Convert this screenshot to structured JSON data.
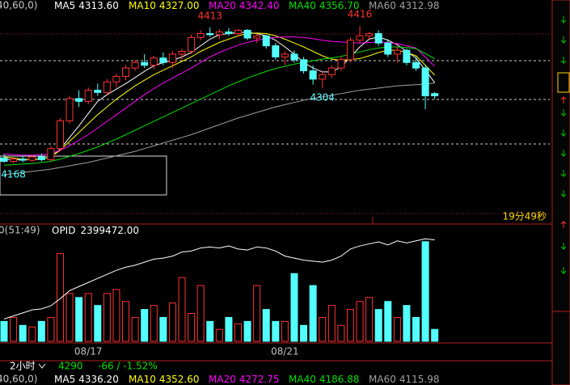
{
  "chart_data": {
    "type": "candlestick",
    "params": "40,60,0)",
    "categories": [
      null,
      null,
      null,
      null,
      null,
      null,
      null,
      null,
      null,
      "08/17",
      null,
      null,
      null,
      null,
      null,
      null,
      null,
      null,
      null,
      null,
      null,
      null,
      null,
      null,
      null,
      null,
      null,
      null,
      null,
      null,
      "08/21",
      null,
      null,
      null,
      null,
      null,
      null,
      null,
      null,
      null,
      null,
      null,
      null,
      null,
      null,
      null,
      null
    ],
    "open": [
      4178,
      4172,
      4176,
      4174,
      4180,
      4175,
      4195,
      4245,
      4285,
      4280,
      4300,
      4296,
      4315,
      4325,
      4340,
      4350,
      4345,
      4358,
      4350,
      4365,
      4370,
      4395,
      4402,
      4400,
      4405,
      4402,
      4408,
      4394,
      4398,
      4380,
      4360,
      4365,
      4355,
      4335,
      4320,
      4328,
      4340,
      4355,
      4390,
      4398,
      4402,
      4385,
      4365,
      4372,
      4350,
      4340,
      4294
    ],
    "high": [
      4185,
      4180,
      4182,
      4184,
      4186,
      4200,
      4250,
      4290,
      4300,
      4305,
      4312,
      4320,
      4330,
      4345,
      4355,
      4365,
      4362,
      4368,
      4370,
      4375,
      4400,
      4408,
      4413,
      4410,
      4412,
      4410,
      4410,
      4402,
      4400,
      4385,
      4370,
      4372,
      4360,
      4345,
      4335,
      4345,
      4360,
      4395,
      4416,
      4405,
      4408,
      4392,
      4380,
      4375,
      4360,
      4345,
      4297
    ],
    "low": [
      4170,
      4168,
      4170,
      4170,
      4172,
      4172,
      4190,
      4240,
      4270,
      4275,
      4290,
      4292,
      4305,
      4318,
      4335,
      4340,
      4338,
      4345,
      4340,
      4355,
      4365,
      4390,
      4396,
      4392,
      4398,
      4396,
      4390,
      4385,
      4375,
      4355,
      4345,
      4350,
      4330,
      4310,
      4304,
      4322,
      4335,
      4350,
      4385,
      4390,
      4380,
      4360,
      4350,
      4345,
      4335,
      4266,
      4284
    ],
    "close": [
      4172,
      4176,
      4174,
      4180,
      4175,
      4195,
      4245,
      4285,
      4280,
      4300,
      4296,
      4315,
      4325,
      4340,
      4350,
      4345,
      4358,
      4350,
      4365,
      4370,
      4395,
      4402,
      4400,
      4405,
      4402,
      4408,
      4394,
      4398,
      4380,
      4360,
      4365,
      4355,
      4335,
      4320,
      4328,
      4340,
      4355,
      4390,
      4398,
      4402,
      4385,
      4365,
      4372,
      4350,
      4340,
      4290,
      4290
    ],
    "ylim": [
      4062,
      4445
    ],
    "up_color": "#ff3232",
    "down_color": "#54ffff",
    "series": [
      {
        "name": "MA5",
        "color": "#ffffff",
        "legend": "4313.60",
        "values": [
          4176,
          4175,
          4175,
          4176,
          4176,
          4180,
          4194,
          4215,
          4236,
          4258,
          4280,
          4292,
          4302,
          4312,
          4323,
          4334,
          4344,
          4350,
          4354,
          4360,
          4368,
          4380,
          4392,
          4400,
          4402,
          4404,
          4404,
          4402,
          4398,
          4390,
          4378,
          4365,
          4350,
          4340,
          4333,
          4333,
          4342,
          4360,
          4378,
          4392,
          4396,
          4390,
          4382,
          4370,
          4358,
          4336,
          4313.6
        ]
      },
      {
        "name": "MA10",
        "color": "#ffff00",
        "legend": "4327.00",
        "values": [
          4180,
          4178,
          4176,
          4175,
          4176,
          4180,
          4192,
          4208,
          4224,
          4240,
          4256,
          4270,
          4284,
          4296,
          4308,
          4318,
          4328,
          4336,
          4344,
          4352,
          4360,
          4370,
          4378,
          4386,
          4392,
          4398,
          4402,
          4403,
          4402,
          4398,
          4392,
          4385,
          4378,
          4370,
          4362,
          4356,
          4354,
          4355,
          4357,
          4362,
          4368,
          4372,
          4372,
          4368,
          4362,
          4345,
          4327
        ]
      },
      {
        "name": "MA20",
        "color": "#ff00ff",
        "legend": "4342.40",
        "values": [
          4185,
          4184,
          4183,
          4183,
          4184,
          4186,
          4192,
          4200,
          4210,
          4220,
          4232,
          4244,
          4256,
          4268,
          4280,
          4292,
          4303,
          4313,
          4322,
          4331,
          4340,
          4350,
          4360,
          4368,
          4375,
          4381,
          4386,
          4390,
          4393,
          4395,
          4396,
          4396,
          4395,
          4393,
          4390,
          4388,
          4387,
          4386,
          4385,
          4386,
          4387,
          4386,
          4384,
          4380,
          4376,
          4360,
          4342.4
        ]
      },
      {
        "name": "MA40",
        "color": "#00e000",
        "legend": "4356.70",
        "values": [
          4165,
          4166,
          4167,
          4168,
          4170,
          4172,
          4176,
          4181,
          4186,
          4192,
          4198,
          4205,
          4212,
          4220,
          4228,
          4236,
          4244,
          4252,
          4260,
          4268,
          4276,
          4284,
          4292,
          4300,
          4308,
          4315,
          4322,
          4328,
          4334,
          4339,
          4343,
          4347,
          4350,
          4353,
          4356,
          4358,
          4361,
          4365,
          4369,
          4373,
          4376,
          4378,
          4378,
          4377,
          4375,
          4366,
          4356.7
        ]
      },
      {
        "name": "MA60",
        "color": "#a0a0a0",
        "legend": "4312.98",
        "values": [
          4148,
          4150,
          4152,
          4154,
          4156,
          4158,
          4161,
          4164,
          4167,
          4170,
          4174,
          4178,
          4182,
          4186,
          4190,
          4195,
          4200,
          4205,
          4210,
          4215,
          4220,
          4226,
          4232,
          4238,
          4244,
          4250,
          4255,
          4260,
          4265,
          4270,
          4274,
          4278,
          4282,
          4285,
          4288,
          4291,
          4294,
          4297,
          4300,
          4302,
          4304,
          4306,
          4308,
          4309,
          4310,
          4311,
          4312.98
        ]
      }
    ],
    "timer": "19分49秒",
    "volume_label": "0(51:49)",
    "volume": {
      "ylim": [
        0,
        140
      ],
      "values": [
        25,
        30,
        20,
        18,
        25,
        30,
        110,
        60,
        55,
        60,
        45,
        60,
        65,
        50,
        30,
        40,
        45,
        30,
        48,
        80,
        35,
        70,
        25,
        15,
        30,
        22,
        25,
        70,
        40,
        25,
        25,
        85,
        20,
        70,
        30,
        45,
        20,
        40,
        50,
        55,
        40,
        50,
        30,
        45,
        30,
        125,
        15
      ]
    },
    "opid": {
      "name": "OPID",
      "legend": "2399472.00",
      "color": "#ffffff",
      "ylim": [
        1900000,
        2450000
      ],
      "values": [
        2010000,
        2025000,
        2040000,
        2055000,
        2060000,
        2075000,
        2110000,
        2150000,
        2170000,
        2190000,
        2210000,
        2230000,
        2250000,
        2265000,
        2275000,
        2290000,
        2305000,
        2310000,
        2320000,
        2340000,
        2345000,
        2360000,
        2365000,
        2360000,
        2370000,
        2355000,
        2350000,
        2365000,
        2360000,
        2345000,
        2320000,
        2310000,
        2300000,
        2295000,
        2290000,
        2300000,
        2320000,
        2355000,
        2370000,
        2380000,
        2390000,
        2375000,
        2395000,
        2385000,
        2395000,
        2405000,
        2399472
      ]
    },
    "status": {
      "period": "2小时",
      "last": 4290,
      "change": "-66 / -1.52%"
    },
    "bottom_legend": {
      "params": "40,60,0)",
      "items": [
        {
          "name": "MA5",
          "value": "4336.20"
        },
        {
          "name": "MA10",
          "value": "4352.60"
        },
        {
          "name": "MA20",
          "value": "4272.75"
        },
        {
          "name": "MA40",
          "value": "4186.88"
        },
        {
          "name": "MA60",
          "value": "4115.98"
        }
      ]
    }
  }
}
